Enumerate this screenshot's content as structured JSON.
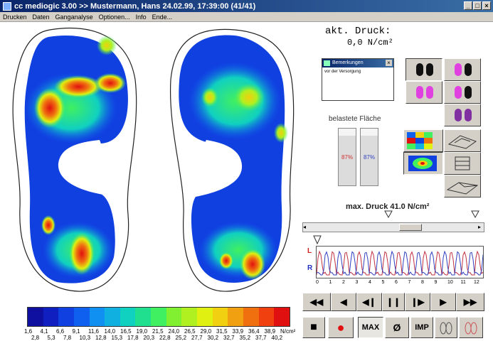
{
  "window": {
    "title": "cc mediogic 3.00 >> Mustermann, Hans 24.02.99, 17:39:00 (41/41)",
    "min_label": "_",
    "max_label": "□",
    "close_label": "×"
  },
  "menu": [
    "Drucken",
    "Daten",
    "Ganganalyse",
    "Optionen...",
    "Info",
    "Ende..."
  ],
  "pressure": {
    "label": "akt. Druck:",
    "value": "0,0 N/cm²"
  },
  "notes": {
    "title": "Bemerkungen",
    "close": "×",
    "text": "vor der Versorgung"
  },
  "area": {
    "label": "belastete Fläche",
    "left_pct": "87%",
    "right_pct": "87%",
    "left_fraction": 0.87,
    "right_fraction": 0.87,
    "left_color": "#d03030",
    "right_color": "#3040c0"
  },
  "max_pressure": "max. Druck 41.0 N/cm²",
  "gait": {
    "left_label": "L",
    "right_label": "R",
    "ticks": [
      "0",
      "1",
      "2",
      "3",
      "4",
      "5",
      "6",
      "7",
      "8",
      "9",
      "10",
      "11",
      "12"
    ]
  },
  "controls": {
    "rewind": "◀◀",
    "back": "◀",
    "step_back": "◀❙",
    "pause": "❙❙",
    "step_fwd": "❙▶",
    "play": "▶",
    "ffwd": "▶▶",
    "stop": "■",
    "record": "●",
    "max": "MAX",
    "avg": "Ø",
    "imp": "IMP"
  },
  "scale": {
    "unit": "N/cm²",
    "top_ticks": [
      "1,6",
      "4,1",
      "6,6",
      "9,1",
      "11,6",
      "14,0",
      "16,5",
      "19,0",
      "21,5",
      "24,0",
      "26,5",
      "29,0",
      "31,5",
      "33,9",
      "36,4",
      "38,9",
      "N/cm²"
    ],
    "bottom_ticks": [
      "2,8",
      "5,3",
      "7,8",
      "10,3",
      "12,8",
      "15,3",
      "17,8",
      "20,3",
      "22,8",
      "25,2",
      "27,7",
      "30,2",
      "32,7",
      "35,2",
      "37,7",
      "40,2"
    ],
    "colors": [
      "#1010a0",
      "#1020c0",
      "#1040e0",
      "#1060f0",
      "#1090f0",
      "#10b0e0",
      "#10d0c0",
      "#20e090",
      "#40f060",
      "#80f030",
      "#b0f020",
      "#e0f010",
      "#f0d010",
      "#f0a010",
      "#f07010",
      "#f04010",
      "#e01010"
    ]
  },
  "colors": {
    "title_bar": "#0a246a",
    "foot_black": "#111111",
    "foot_magenta": "#e040e0",
    "foot_purple": "#8030a0"
  }
}
